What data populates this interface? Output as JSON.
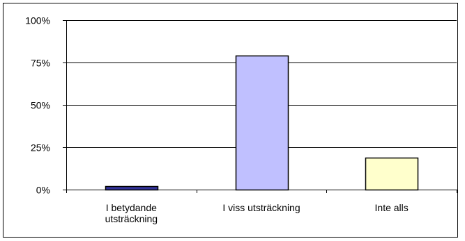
{
  "chart_data": {
    "type": "bar",
    "categories": [
      [
        "I betydande",
        "utsträckning"
      ],
      [
        "I viss utsträckning"
      ],
      [
        "Inte alls"
      ]
    ],
    "values": [
      2,
      79,
      19
    ],
    "ylim": [
      0,
      100
    ],
    "yticks": [
      {
        "value": 0,
        "label": "0%"
      },
      {
        "value": 25,
        "label": "25%"
      },
      {
        "value": 50,
        "label": "50%"
      },
      {
        "value": 75,
        "label": "75%"
      },
      {
        "value": 100,
        "label": "100%"
      }
    ],
    "grid": true,
    "bar_colors": [
      "#333399",
      "#C0C0FF",
      "#FFFFCC"
    ],
    "plot_background": "#ffffff",
    "gridline_color": "#000000"
  }
}
